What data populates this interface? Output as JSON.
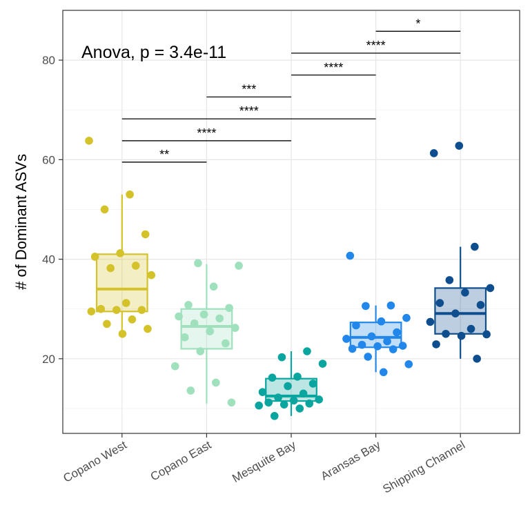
{
  "chart_data": {
    "type": "boxplot",
    "title": "",
    "xlabel": "",
    "ylabel": "# of Dominant ASVs",
    "ylim": [
      5,
      90
    ],
    "yticks": [
      20,
      40,
      60,
      80
    ],
    "grid": true,
    "annotation": "Anova, p = 3.4e-11",
    "categories": [
      "Copano West",
      "Copano East",
      "Mesquite Bay",
      "Aransas Bay",
      "Shipping Channel"
    ],
    "groups": [
      {
        "name": "Copano West",
        "color": "#d4c22a",
        "box": {
          "min": 25,
          "q1": 29.5,
          "median": 34,
          "q3": 41,
          "max": 53
        },
        "points": [
          63.8,
          53,
          50,
          45,
          41.2,
          40.5,
          38.7,
          38.2,
          36.8,
          31.2,
          30,
          29.8,
          29.8,
          29.5,
          27.9,
          27,
          26,
          25
        ]
      },
      {
        "name": "Copano East",
        "color": "#9fe0bd",
        "box": {
          "min": 11,
          "q1": 22,
          "median": 26.5,
          "q3": 30,
          "max": 39
        },
        "points": [
          39.2,
          38.7,
          34.5,
          30.8,
          30.2,
          28.9,
          28.5,
          28.1,
          27.1,
          26.2,
          25.5,
          24.3,
          23.1,
          21.5,
          18.5,
          15.2,
          13.6,
          11.2
        ]
      },
      {
        "name": "Mesquite Bay",
        "color": "#0aa59e",
        "box": {
          "min": 8.5,
          "q1": 11.5,
          "median": 12.5,
          "q3": 16,
          "max": 21.5
        },
        "points": [
          21.5,
          20.3,
          19,
          16.4,
          16.2,
          15,
          14.5,
          13.3,
          13,
          12.2,
          11.8,
          11.6,
          11.2,
          11,
          10.8,
          10.6,
          10,
          8.5
        ]
      },
      {
        "name": "Aransas Bay",
        "color": "#2287ea",
        "box": {
          "min": 17.3,
          "q1": 22.3,
          "median": 24.3,
          "q3": 27.3,
          "max": 30.7
        },
        "points": [
          40.7,
          30.7,
          30.6,
          28.2,
          27.5,
          26.7,
          25.3,
          24.5,
          24,
          23.5,
          22.8,
          22.6,
          22.5,
          22,
          21.9,
          20.4,
          18.9,
          17.3
        ]
      },
      {
        "name": "Shipping Channel",
        "color": "#0f4e8e",
        "box": {
          "min": 20,
          "q1": 25,
          "median": 29.1,
          "q3": 34.2,
          "max": 42.5
        },
        "points": [
          62.8,
          61.3,
          42.5,
          35.8,
          34.2,
          33.3,
          31.2,
          30.8,
          29.1,
          27.4,
          26,
          25,
          24.9,
          24.6,
          22.9,
          20
        ]
      }
    ],
    "comparisons": [
      {
        "from": "Copano West",
        "to": "Copano East",
        "y": 59.5,
        "label": "**"
      },
      {
        "from": "Copano West",
        "to": "Mesquite Bay",
        "y": 63.8,
        "label": "****"
      },
      {
        "from": "Copano West",
        "to": "Aransas Bay",
        "y": 68.2,
        "label": "****"
      },
      {
        "from": "Copano East",
        "to": "Mesquite Bay",
        "y": 72.6,
        "label": "***"
      },
      {
        "from": "Mesquite Bay",
        "to": "Aransas Bay",
        "y": 77.0,
        "label": "****"
      },
      {
        "from": "Mesquite Bay",
        "to": "Shipping Channel",
        "y": 81.4,
        "label": "****"
      },
      {
        "from": "Aransas Bay",
        "to": "Shipping Channel",
        "y": 85.8,
        "label": "*"
      }
    ]
  }
}
